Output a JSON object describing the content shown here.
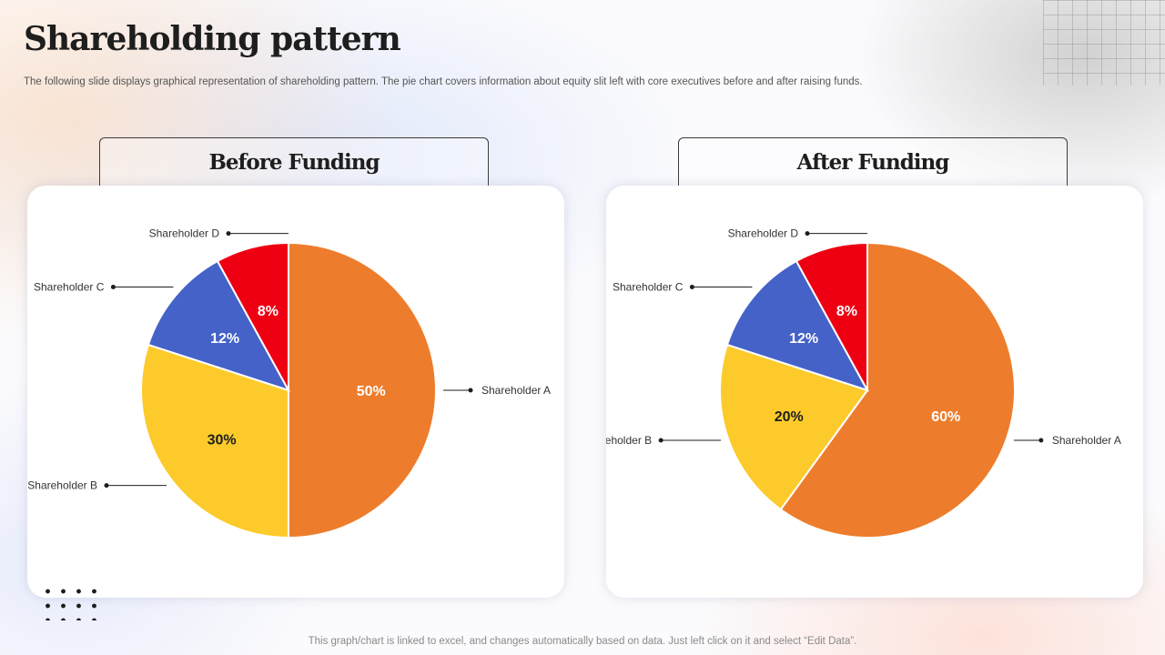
{
  "slide": {
    "title": "Shareholding pattern",
    "subtitle": "The following slide displays graphical representation of shareholding pattern. The pie chart covers information about equity slit left with core executives before and after raising funds.",
    "footer": "This graph/chart is linked to excel,  and changes automatically based on data. Just left click on it and select “Edit Data”."
  },
  "colors": {
    "Shareholder A": "#ED7D2C",
    "Shareholder B": "#FCCB2B",
    "Shareholder C": "#4462C8",
    "Shareholder D": "#EE0012"
  },
  "chart_data": [
    {
      "type": "pie",
      "title": "Before Funding",
      "categories": [
        "Shareholder A",
        "Shareholder B",
        "Shareholder C",
        "Shareholder D"
      ],
      "values": [
        50,
        30,
        12,
        8
      ],
      "data_labels": [
        "50%",
        "30%",
        "12%",
        "8%"
      ],
      "start": "12 o'clock, clockwise"
    },
    {
      "type": "pie",
      "title": "After Funding",
      "categories": [
        "Shareholder A",
        "Shareholder B",
        "Shareholder C",
        "Shareholder D"
      ],
      "values": [
        60,
        20,
        12,
        8
      ],
      "data_labels": [
        "60%",
        "20%",
        "12%",
        "8%"
      ],
      "start": "12 o'clock, clockwise"
    }
  ]
}
